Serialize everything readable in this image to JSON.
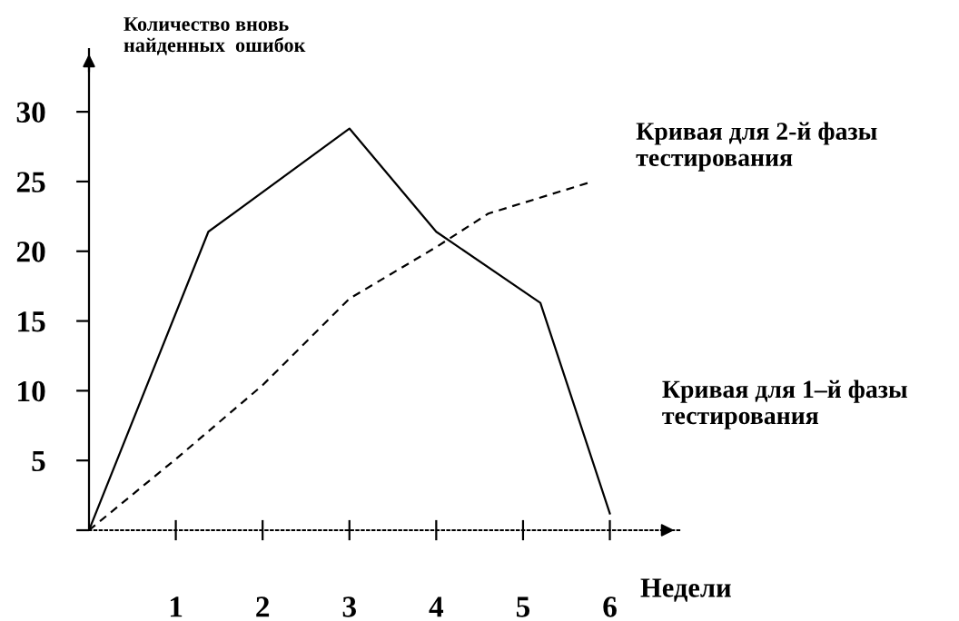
{
  "chart_data": {
    "type": "line",
    "xlabel": "Недели",
    "ylabel": "Количество вновь\nнайденных  ошибок",
    "xlim": [
      0,
      6.8
    ],
    "ylim": [
      0,
      34.5
    ],
    "xticks": [
      1,
      2,
      3,
      4,
      5,
      6
    ],
    "yticks": [
      {
        "value": 0,
        "label": null
      },
      5,
      10,
      15,
      20,
      25,
      30
    ],
    "grid": false,
    "legend": false,
    "marker": "none",
    "series": [
      {
        "name": "Кривая для 1–й фазы\nтестирования",
        "color": "#000000",
        "line_style": "solid",
        "x": [
          0,
          1.375,
          3,
          4,
          5.2,
          6
        ],
        "values": [
          0,
          21.4,
          28.8,
          21.4,
          16.3,
          1.2
        ]
      },
      {
        "name": "Кривая для 2-й фазы\nтестирования",
        "color": "#000000",
        "line_style": "dashed",
        "x": [
          0,
          1,
          2,
          3,
          4,
          4.6,
          5.8
        ],
        "values": [
          0,
          5.1,
          10.4,
          16.6,
          20.3,
          22.7,
          25
        ]
      }
    ]
  }
}
